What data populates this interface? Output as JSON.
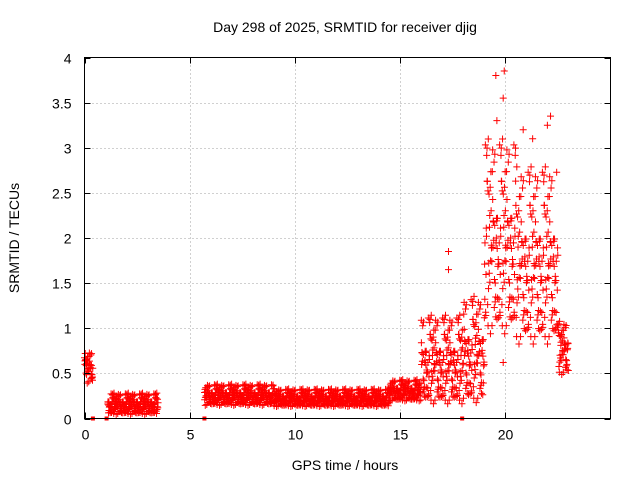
{
  "chart_data": {
    "type": "scatter",
    "title": "Day 298 of 2025, SRMTID for receiver djig",
    "xlabel": "GPS time / hours",
    "ylabel": "SRMTID / TECUs",
    "xlim": [
      0,
      25
    ],
    "ylim": [
      0,
      4
    ],
    "xticks": [
      0,
      5,
      10,
      15,
      20
    ],
    "xtick_labels": [
      "0",
      "5",
      "10",
      "15",
      "20"
    ],
    "yticks": [
      0,
      0.5,
      1,
      1.5,
      2,
      2.5,
      3,
      3.5,
      4
    ],
    "ytick_labels": [
      "0",
      "0.5",
      "1",
      "1.5",
      "2",
      "2.5",
      "3",
      "3.5",
      "4"
    ],
    "grid": true,
    "marker": "+",
    "color": "#ff0000",
    "series": [
      {
        "name": "SRMTID",
        "segments": [
          {
            "x_start": 0.0,
            "x_end": 0.4,
            "base": 0.55,
            "spread": 0.18
          },
          {
            "x_start": 1.1,
            "x_end": 3.5,
            "base": 0.15,
            "spread": 0.12
          },
          {
            "x_start": 5.7,
            "x_end": 9.0,
            "base": 0.25,
            "spread": 0.12
          },
          {
            "x_start": 9.0,
            "x_end": 14.5,
            "base": 0.22,
            "spread": 0.1
          },
          {
            "x_start": 14.5,
            "x_end": 16.0,
            "base": 0.3,
            "spread": 0.12
          },
          {
            "x_start": 16.0,
            "x_end": 18.0,
            "base": 0.6,
            "spread": 0.5
          },
          {
            "x_start": 18.0,
            "x_end": 19.0,
            "base": 0.7,
            "spread": 0.6
          },
          {
            "x_start": 19.0,
            "x_end": 20.5,
            "base": 1.9,
            "spread": 1.1
          },
          {
            "x_start": 20.5,
            "x_end": 22.5,
            "base": 1.7,
            "spread": 1.0
          },
          {
            "x_start": 22.5,
            "x_end": 23.0,
            "base": 0.75,
            "spread": 0.3
          }
        ],
        "peaks": [
          {
            "x": 19.55,
            "y": 3.8
          },
          {
            "x": 19.95,
            "y": 3.85
          },
          {
            "x": 19.9,
            "y": 3.55
          },
          {
            "x": 19.6,
            "y": 3.3
          },
          {
            "x": 20.85,
            "y": 3.2
          },
          {
            "x": 21.3,
            "y": 3.1
          },
          {
            "x": 22.15,
            "y": 3.35
          },
          {
            "x": 22.0,
            "y": 3.25
          },
          {
            "x": 17.3,
            "y": 1.85
          },
          {
            "x": 17.3,
            "y": 1.65
          },
          {
            "x": 19.9,
            "y": 0.62
          }
        ],
        "zero_points": [
          0.4,
          1.05,
          5.7,
          17.95
        ]
      }
    ]
  }
}
